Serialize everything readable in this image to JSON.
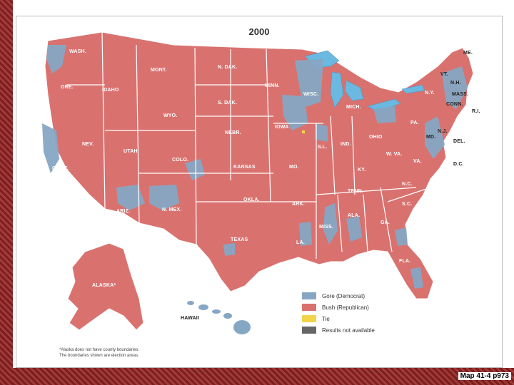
{
  "title": "2000",
  "states": [
    {
      "name": "WASH."
    },
    {
      "name": "ORE."
    },
    {
      "name": "IDAHO"
    },
    {
      "name": "MONT."
    },
    {
      "name": "WYO."
    },
    {
      "name": "N. DAK."
    },
    {
      "name": "S. DAK."
    },
    {
      "name": "NEBR."
    },
    {
      "name": "NEV."
    },
    {
      "name": "UTAH"
    },
    {
      "name": "COLO."
    },
    {
      "name": "CALIF."
    },
    {
      "name": "ARIZ."
    },
    {
      "name": "N. MEX."
    },
    {
      "name": "KANSAS"
    },
    {
      "name": "OKLA."
    },
    {
      "name": "TEXAS"
    },
    {
      "name": "MINN."
    },
    {
      "name": "IOWA"
    },
    {
      "name": "MO."
    },
    {
      "name": "ARK."
    },
    {
      "name": "LA."
    },
    {
      "name": "WISC."
    },
    {
      "name": "ILL."
    },
    {
      "name": "MICH."
    },
    {
      "name": "IND."
    },
    {
      "name": "OHIO"
    },
    {
      "name": "KY."
    },
    {
      "name": "TENN."
    },
    {
      "name": "MISS."
    },
    {
      "name": "ALA."
    },
    {
      "name": "GA."
    },
    {
      "name": "FLA."
    },
    {
      "name": "S.C."
    },
    {
      "name": "N.C."
    },
    {
      "name": "VA."
    },
    {
      "name": "W. VA."
    },
    {
      "name": "PA."
    },
    {
      "name": "N.Y."
    },
    {
      "name": "VT."
    },
    {
      "name": "N.H."
    },
    {
      "name": "ME."
    },
    {
      "name": "MASS."
    },
    {
      "name": "CONN."
    },
    {
      "name": "R.I."
    },
    {
      "name": "N.J."
    },
    {
      "name": "DEL."
    },
    {
      "name": "MD."
    },
    {
      "name": "D.C."
    },
    {
      "name": "ALASKA*"
    },
    {
      "name": "HAWAII"
    }
  ],
  "legend": [
    {
      "label": "Gore (Democrat)",
      "color": "#86a7c4"
    },
    {
      "label": "Bush (Republican)",
      "color": "#d9726f"
    },
    {
      "label": "Tie",
      "color": "#f2d44a"
    },
    {
      "label": "Results not available",
      "color": "#666666"
    }
  ],
  "footnote": {
    "line1": "*Alaska does not have county boundaries.",
    "line2": "The boundaries shown are election areas."
  },
  "caption": "Map 41-4 p973",
  "colors": {
    "water": "#6bb8e0",
    "republican": "#d9726f",
    "democrat": "#86a7c4"
  }
}
